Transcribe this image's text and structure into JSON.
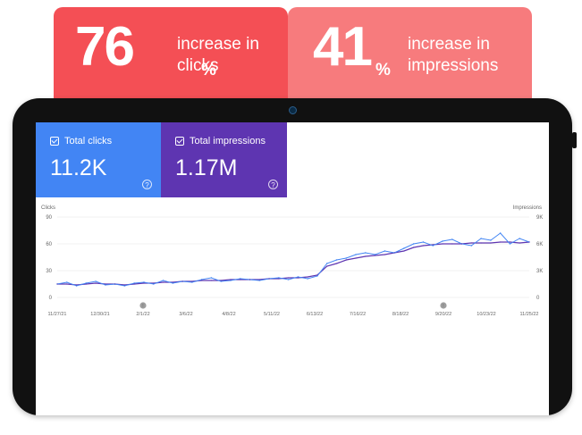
{
  "stats": [
    {
      "number": "76",
      "unit": "%",
      "text": "increase in clicks"
    },
    {
      "number": "41",
      "unit": "%",
      "text": "increase in impressions"
    }
  ],
  "metrics": [
    {
      "label": "Total clicks",
      "value": "11.2K",
      "color": "#4285f4",
      "checked": true
    },
    {
      "label": "Total impressions",
      "value": "1.17M",
      "color": "#5e35b1",
      "checked": true
    }
  ],
  "colors": {
    "stat_primary": "#f44f55",
    "stat_secondary": "#f77b7d",
    "clicks_line": "#4285f4",
    "impressions_line": "#5e35b1"
  },
  "chart_data": {
    "type": "line",
    "left_axis_label": "Clicks",
    "right_axis_label": "Impressions",
    "left_ticks": [
      "90",
      "60",
      "30",
      "0"
    ],
    "right_ticks": [
      "9K",
      "6K",
      "3K",
      "0"
    ],
    "ylim_left": [
      0,
      90
    ],
    "ylim_right": [
      0,
      9000
    ],
    "x_ticks": [
      "11/27/21",
      "12/30/21",
      "2/1/22",
      "3/6/22",
      "4/8/22",
      "5/11/22",
      "6/13/22",
      "7/16/22",
      "8/18/22",
      "9/20/22",
      "10/23/22",
      "11/25/22"
    ],
    "annotations": [
      "2/1/22",
      "9/20/22"
    ],
    "grid": true,
    "series": [
      {
        "name": "Clicks",
        "color": "#4285f4",
        "values": [
          15,
          17,
          13,
          16,
          18,
          14,
          15,
          13,
          16,
          17,
          15,
          19,
          16,
          18,
          17,
          20,
          22,
          18,
          19,
          21,
          20,
          19,
          21,
          22,
          20,
          23,
          21,
          24,
          38,
          42,
          44,
          48,
          50,
          48,
          52,
          50,
          55,
          60,
          62,
          58,
          63,
          65,
          60,
          58,
          66,
          64,
          72,
          60,
          66,
          62
        ]
      },
      {
        "name": "Impressions",
        "color": "#5e35b1",
        "values": [
          1500,
          1500,
          1400,
          1500,
          1600,
          1500,
          1500,
          1400,
          1500,
          1600,
          1600,
          1700,
          1700,
          1800,
          1800,
          1900,
          1900,
          1900,
          2000,
          2000,
          2000,
          2000,
          2100,
          2100,
          2200,
          2200,
          2300,
          2500,
          3500,
          3800,
          4200,
          4400,
          4600,
          4700,
          4800,
          5000,
          5200,
          5600,
          5800,
          5900,
          6000,
          6000,
          6000,
          6100,
          6100,
          6100,
          6200,
          6200,
          6100,
          6200
        ]
      }
    ]
  }
}
